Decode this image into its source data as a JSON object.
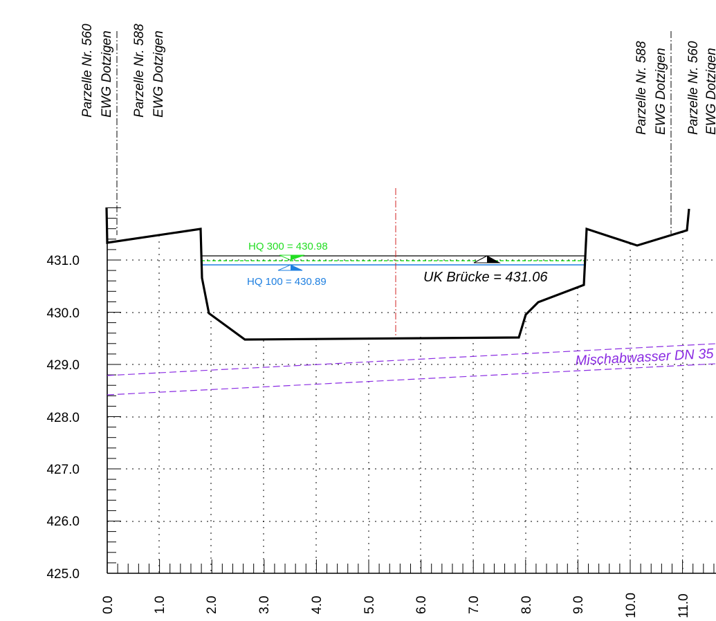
{
  "drawing": {
    "x_axis": {
      "ticks": [
        "0.0",
        "1.0",
        "2.0",
        "3.0",
        "4.0",
        "5.0",
        "6.0",
        "7.0",
        "8.0",
        "9.0",
        "10.0",
        "11.0"
      ]
    },
    "y_axis": {
      "ticks": [
        "425.0",
        "426.0",
        "427.0",
        "428.0",
        "429.0",
        "430.0",
        "431.0"
      ]
    },
    "parcel_labels": [
      {
        "line1": "Parzelle Nr. 560",
        "line2": "EWG Dotzigen"
      },
      {
        "line1": "Parzelle Nr. 588",
        "line2": "EWG Dotzigen"
      },
      {
        "line1": "Parzelle Nr. 588",
        "line2": "EWG Dotzigen"
      },
      {
        "line1": "Parzelle Nr. 560",
        "line2": "EWG Dotzigen"
      }
    ],
    "hq300": {
      "label": "HQ 300 = 430.98",
      "color": "#22dd22"
    },
    "hq100": {
      "label": "HQ 100 = 430.89",
      "color": "#1e7fe0"
    },
    "bridge": {
      "label": "UK Brücke = 431.06"
    },
    "pipe": {
      "label": "Mischabwasser DN 35",
      "color": "#8a2be2"
    },
    "axis_color": "#d22222"
  }
}
